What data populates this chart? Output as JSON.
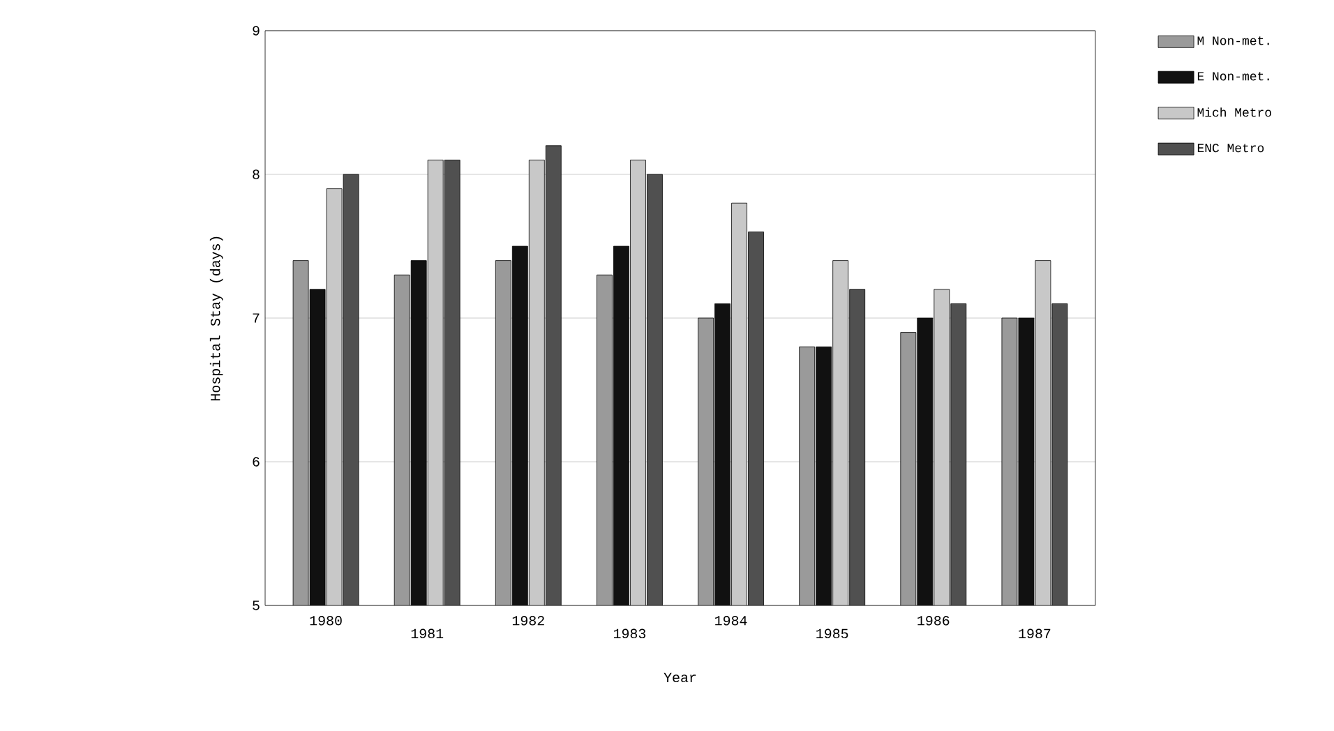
{
  "chart_data": {
    "type": "bar",
    "xlabel": "Year",
    "ylabel": "Hospital Stay (days)",
    "categories": [
      "1980",
      "1981",
      "1982",
      "1983",
      "1984",
      "1985",
      "1986",
      "1987"
    ],
    "series": [
      {
        "name": "M Non-met.",
        "color": "#9a9a9a",
        "values": [
          7.4,
          7.3,
          7.4,
          7.3,
          7.0,
          6.8,
          6.9,
          7.0
        ]
      },
      {
        "name": "E Non-met.",
        "color": "#111111",
        "values": [
          7.2,
          7.4,
          7.5,
          7.5,
          7.1,
          6.8,
          7.0,
          7.0
        ]
      },
      {
        "name": "Mich Metro",
        "color": "#c8c8c8",
        "values": [
          7.9,
          8.1,
          8.1,
          8.1,
          7.8,
          7.4,
          7.2,
          7.4
        ]
      },
      {
        "name": "ENC Metro",
        "color": "#505050",
        "values": [
          8.0,
          8.1,
          8.2,
          8.0,
          7.6,
          7.2,
          7.1,
          7.1
        ]
      }
    ],
    "ylim": [
      5,
      9
    ],
    "yticks": [
      5,
      6,
      7,
      8,
      9
    ],
    "grid": "y",
    "legend": "right"
  }
}
